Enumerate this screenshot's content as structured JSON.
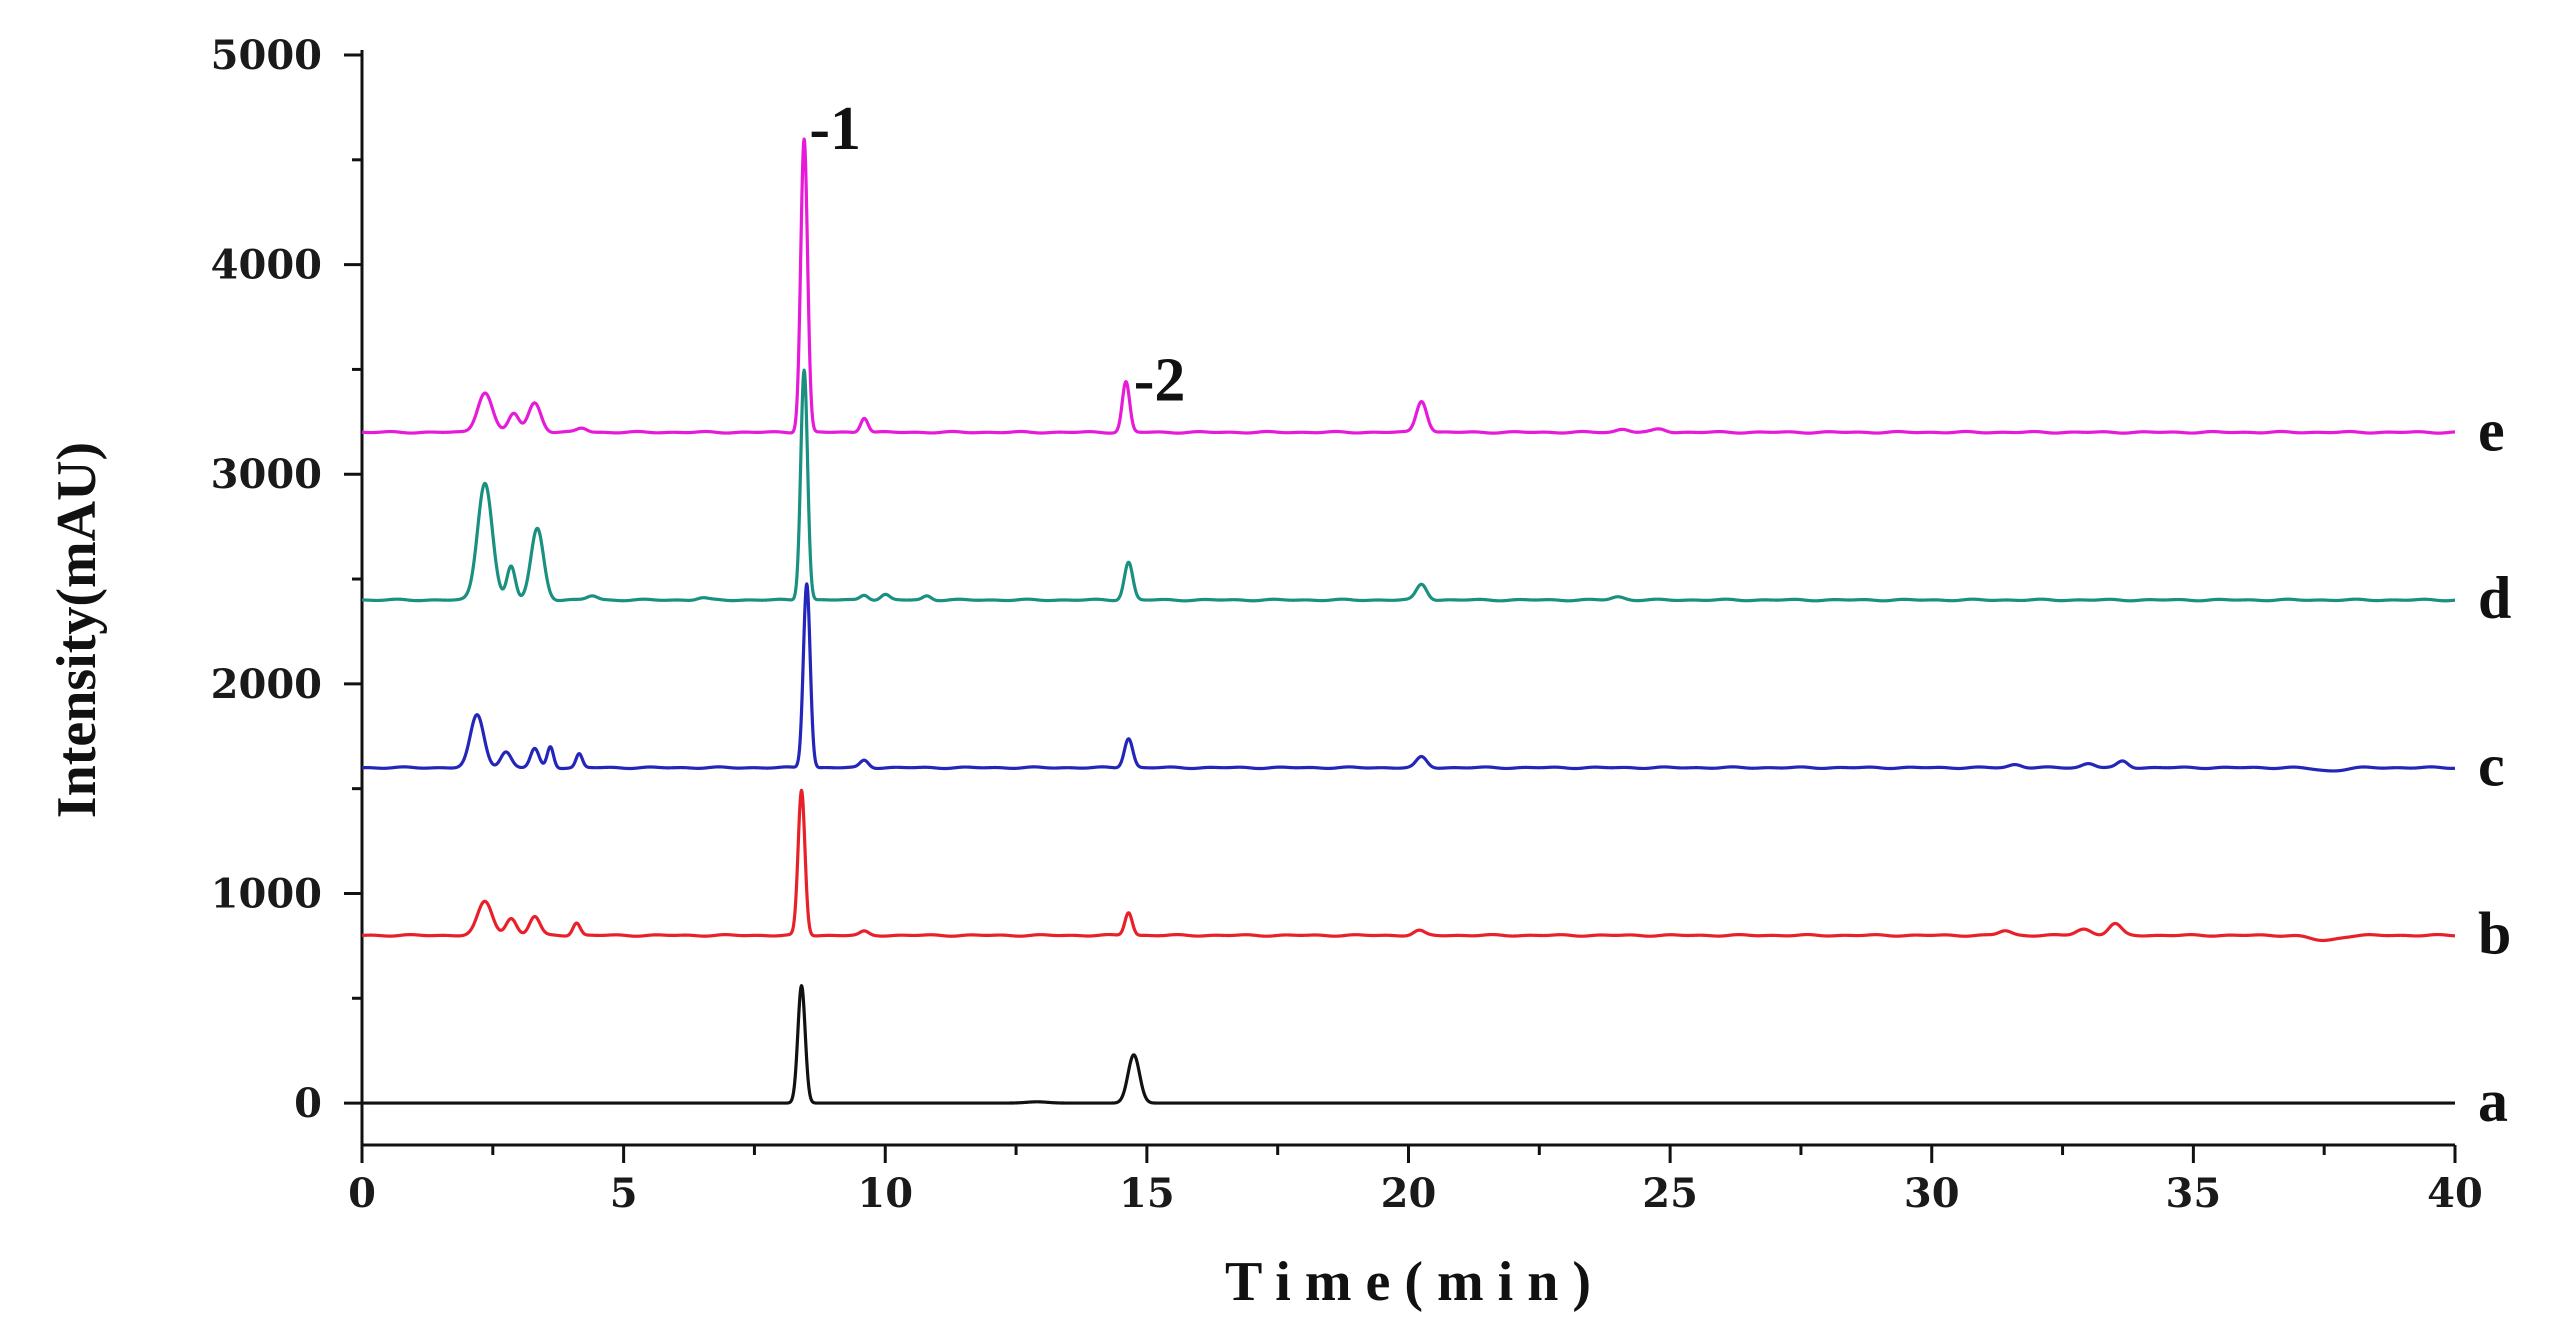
{
  "chart_data": {
    "type": "line",
    "xlabel": "Time(min)",
    "ylabel": "Intensity(mAU)",
    "xlim": [
      0,
      40
    ],
    "ylim": [
      -200,
      5000
    ],
    "x_ticks": [
      0,
      5,
      10,
      15,
      20,
      25,
      30,
      35,
      40
    ],
    "y_ticks": [
      0,
      1000,
      2000,
      3000,
      4000,
      5000
    ],
    "grid": false,
    "legend": "none",
    "series": [
      {
        "name": "a",
        "color": "#111111",
        "baseline": 0,
        "peaks": [
          {
            "t": 8.4,
            "h": 560,
            "w": 0.07
          },
          {
            "t": 14.75,
            "h": 230,
            "w": 0.11
          },
          {
            "t": 12.9,
            "h": 6,
            "w": 0.2
          }
        ]
      },
      {
        "name": "b",
        "color": "#e8202a",
        "baseline": 800,
        "peaks": [
          {
            "t": 2.35,
            "h": 160,
            "w": 0.14
          },
          {
            "t": 2.85,
            "h": 80,
            "w": 0.1
          },
          {
            "t": 3.3,
            "h": 90,
            "w": 0.1
          },
          {
            "t": 4.1,
            "h": 60,
            "w": 0.07
          },
          {
            "t": 8.4,
            "h": 690,
            "w": 0.065
          },
          {
            "t": 9.6,
            "h": 18,
            "w": 0.08
          },
          {
            "t": 14.65,
            "h": 110,
            "w": 0.07
          },
          {
            "t": 20.2,
            "h": 22,
            "w": 0.1
          },
          {
            "t": 31.4,
            "h": 22,
            "w": 0.12
          },
          {
            "t": 32.9,
            "h": 30,
            "w": 0.14
          },
          {
            "t": 33.5,
            "h": 55,
            "w": 0.12
          },
          {
            "t": 37.5,
            "h": -25,
            "w": 0.25
          }
        ]
      },
      {
        "name": "c",
        "color": "#2326b8",
        "baseline": 1600,
        "peaks": [
          {
            "t": 2.2,
            "h": 250,
            "w": 0.13
          },
          {
            "t": 2.75,
            "h": 75,
            "w": 0.1
          },
          {
            "t": 3.3,
            "h": 90,
            "w": 0.08
          },
          {
            "t": 3.6,
            "h": 100,
            "w": 0.06
          },
          {
            "t": 4.15,
            "h": 65,
            "w": 0.06
          },
          {
            "t": 8.5,
            "h": 880,
            "w": 0.065
          },
          {
            "t": 9.6,
            "h": 35,
            "w": 0.08
          },
          {
            "t": 14.65,
            "h": 140,
            "w": 0.08
          },
          {
            "t": 20.25,
            "h": 50,
            "w": 0.1
          },
          {
            "t": 31.6,
            "h": 15,
            "w": 0.12
          },
          {
            "t": 33.0,
            "h": 20,
            "w": 0.12
          },
          {
            "t": 33.65,
            "h": 30,
            "w": 0.1
          },
          {
            "t": 37.6,
            "h": -15,
            "w": 0.25
          }
        ]
      },
      {
        "name": "d",
        "color": "#1a9080",
        "baseline": 2400,
        "peaks": [
          {
            "t": 2.35,
            "h": 560,
            "w": 0.14
          },
          {
            "t": 2.85,
            "h": 160,
            "w": 0.08
          },
          {
            "t": 3.35,
            "h": 340,
            "w": 0.12
          },
          {
            "t": 4.4,
            "h": 20,
            "w": 0.1
          },
          {
            "t": 6.5,
            "h": 10,
            "w": 0.1
          },
          {
            "t": 8.45,
            "h": 1100,
            "w": 0.065
          },
          {
            "t": 9.6,
            "h": 25,
            "w": 0.08
          },
          {
            "t": 10.0,
            "h": 25,
            "w": 0.08
          },
          {
            "t": 10.8,
            "h": 20,
            "w": 0.08
          },
          {
            "t": 14.65,
            "h": 180,
            "w": 0.08
          },
          {
            "t": 20.25,
            "h": 75,
            "w": 0.1
          },
          {
            "t": 24.0,
            "h": 15,
            "w": 0.12
          }
        ]
      },
      {
        "name": "e",
        "color": "#e61ad8",
        "baseline": 3200,
        "peaks": [
          {
            "t": 2.35,
            "h": 190,
            "w": 0.14
          },
          {
            "t": 2.9,
            "h": 90,
            "w": 0.1
          },
          {
            "t": 3.3,
            "h": 140,
            "w": 0.12
          },
          {
            "t": 4.2,
            "h": 20,
            "w": 0.1
          },
          {
            "t": 8.45,
            "h": 1400,
            "w": 0.065
          },
          {
            "t": 9.6,
            "h": 70,
            "w": 0.07
          },
          {
            "t": 14.6,
            "h": 240,
            "w": 0.07
          },
          {
            "t": 20.25,
            "h": 150,
            "w": 0.1
          },
          {
            "t": 24.1,
            "h": 15,
            "w": 0.12
          },
          {
            "t": 24.8,
            "h": 15,
            "w": 0.12
          }
        ]
      }
    ],
    "annotations": [
      {
        "text": "-1",
        "x": 8.55,
        "y": 4600
      },
      {
        "text": "-2",
        "x": 14.75,
        "y": 3400
      }
    ]
  }
}
